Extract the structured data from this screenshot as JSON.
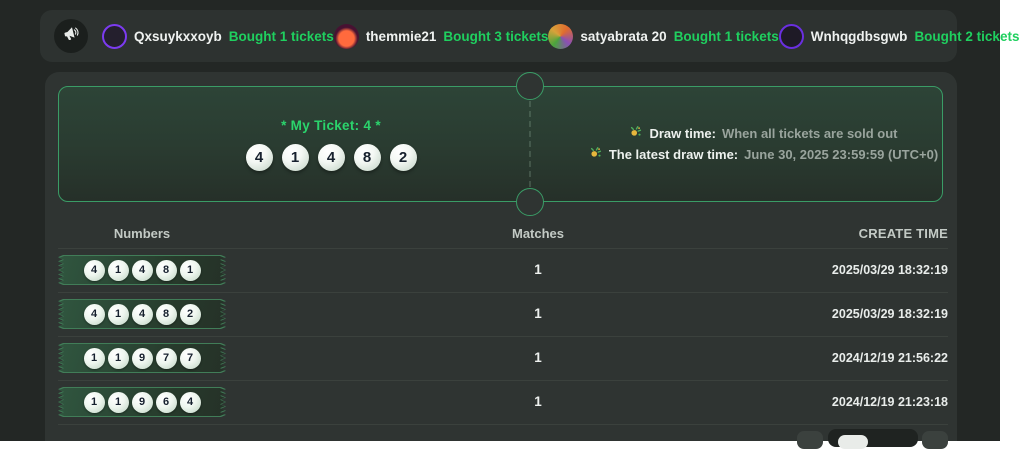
{
  "colors": {
    "accent_green": "#1fd05f",
    "ticket_title_green": "#2bd46c",
    "ticket_border_green": "#3a9c66",
    "panel_bg": "#2f3432",
    "page_bg": "#232725"
  },
  "ticker": {
    "entries": [
      {
        "user": "Qxsuykxxoyb",
        "action": "Bought 1 tickets",
        "avatar": {
          "bg": "#241f2d",
          "ring": "#7c3bf0"
        }
      },
      {
        "user": "themmie21",
        "action": "Bought 3 tickets",
        "avatar": {
          "bg": "#471232",
          "blob": "#ff6a3d"
        }
      },
      {
        "user": "satyabrata 20",
        "action": "Bought 1 tickets",
        "avatar": {
          "bg": "#c2452f",
          "mosaic": [
            "#e06b2e",
            "#8a4fb5",
            "#4aa53c",
            "#d8a23a"
          ]
        }
      },
      {
        "user": "Wnhqgdbsgwb",
        "action": "Bought 2 tickets",
        "avatar": {
          "bg": "#1e1a26",
          "ring": "#6a2fe0"
        }
      }
    ]
  },
  "ticket": {
    "title": "* My Ticket: 4 *",
    "numbers": [
      "4",
      "1",
      "4",
      "8",
      "2"
    ],
    "lines": [
      {
        "label": "Draw time:",
        "value": "When all tickets are sold out"
      },
      {
        "label": "The latest draw time:",
        "value": "June 30, 2025 23:59:59 (UTC+0)"
      }
    ]
  },
  "table": {
    "headers": {
      "numbers": "Numbers",
      "matches": "Matches",
      "create_time": "CREATE TIME"
    },
    "rows": [
      {
        "numbers": [
          "4",
          "1",
          "4",
          "8",
          "1"
        ],
        "matches": "1",
        "created": "2025/03/29 18:32:19"
      },
      {
        "numbers": [
          "4",
          "1",
          "4",
          "8",
          "2"
        ],
        "matches": "1",
        "created": "2025/03/29 18:32:19"
      },
      {
        "numbers": [
          "1",
          "1",
          "9",
          "7",
          "7"
        ],
        "matches": "1",
        "created": "2024/12/19 21:56:22"
      },
      {
        "numbers": [
          "1",
          "1",
          "9",
          "6",
          "4"
        ],
        "matches": "1",
        "created": "2024/12/19 21:23:18"
      }
    ]
  }
}
